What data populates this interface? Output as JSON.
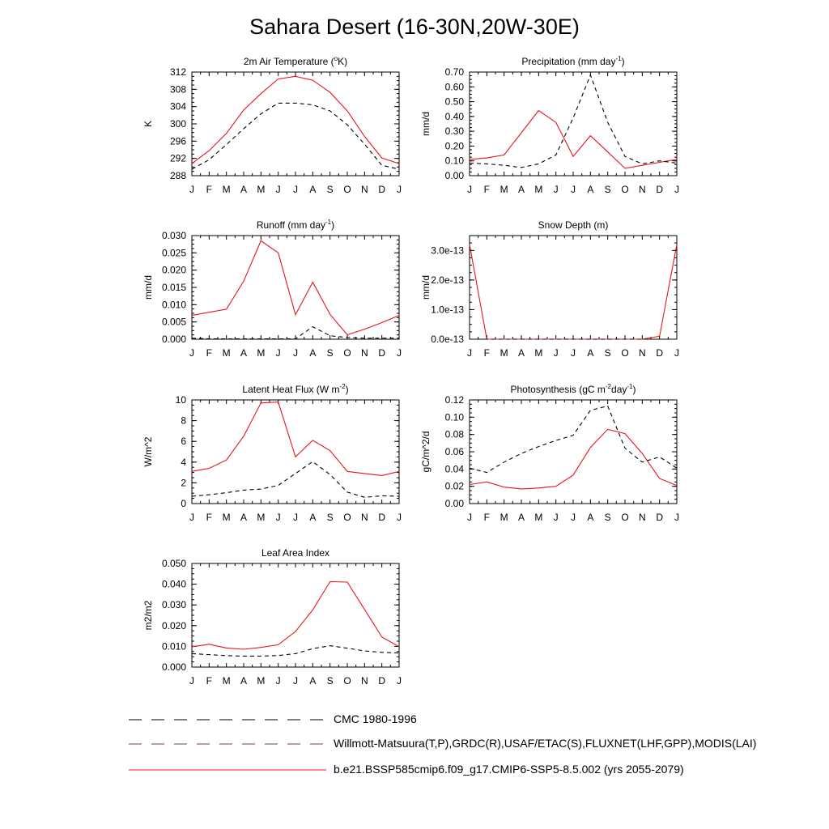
{
  "title": "Sahara Desert (16-30N,20W-30E)",
  "colors": {
    "model": "#e8141e",
    "obs": "#000000",
    "obs_alt": "#2c2cd6"
  },
  "legend": [
    {
      "label": "CMC 1980-1996",
      "style": "dashed",
      "color": "#000000"
    },
    {
      "label": "Willmott-Matsuura(T,P),GRDC(R),USAF/ETAC(S),FLUXNET(LHF,GPP),MODIS(LAI)",
      "style": "dashed",
      "color": "#2c2cd6"
    },
    {
      "label": "b.e21.BSSP585cmip6.f09_g17.CMIP6-SSP5-8.5.002 (yrs 2055-2079)",
      "style": "solid",
      "color": "#e8141e"
    }
  ],
  "chart_data": [
    {
      "type": "line",
      "title": "2m Air Temperature (",
      "title_sup": "o",
      "title_tail": "K)",
      "ylabel": "K",
      "x": [
        "J",
        "F",
        "M",
        "A",
        "M",
        "J",
        "J",
        "A",
        "S",
        "O",
        "N",
        "D",
        "J"
      ],
      "ylim": [
        288,
        312
      ],
      "yticks": [
        288,
        292,
        296,
        300,
        304,
        308,
        312
      ],
      "ytick_labels": [
        "288",
        "292",
        "296",
        "300",
        "304",
        "308",
        "312"
      ],
      "series": [
        {
          "style": "solid",
          "values": [
            290.8,
            293.8,
            297.8,
            303.2,
            307.0,
            310.4,
            311.0,
            310.1,
            307.3,
            303.0,
            297.1,
            292.1,
            290.8
          ]
        },
        {
          "style": "dashed",
          "values": [
            289.5,
            291.7,
            295.2,
            298.9,
            302.3,
            304.8,
            304.8,
            304.4,
            303.0,
            299.8,
            295.3,
            290.4,
            289.5
          ]
        }
      ]
    },
    {
      "type": "line",
      "title": "Precipitation (mm day",
      "title_sup": "-1",
      "title_tail": ")",
      "ylabel": "mm/d",
      "x": [
        "J",
        "F",
        "M",
        "A",
        "M",
        "J",
        "J",
        "A",
        "S",
        "O",
        "N",
        "D",
        "J"
      ],
      "ylim": [
        0,
        0.7
      ],
      "yticks": [
        0,
        0.1,
        0.2,
        0.3,
        0.4,
        0.5,
        0.6,
        0.7
      ],
      "ytick_labels": [
        "0.00",
        "0.10",
        "0.20",
        "0.30",
        "0.40",
        "0.50",
        "0.60",
        "0.70"
      ],
      "series": [
        {
          "style": "solid",
          "values": [
            0.11,
            0.12,
            0.14,
            0.29,
            0.44,
            0.36,
            0.13,
            0.27,
            0.16,
            0.05,
            0.07,
            0.09,
            0.11
          ]
        },
        {
          "style": "dashed",
          "values": [
            0.085,
            0.08,
            0.07,
            0.055,
            0.08,
            0.14,
            0.39,
            0.68,
            0.36,
            0.13,
            0.08,
            0.1,
            0.085
          ]
        }
      ]
    },
    {
      "type": "line",
      "title": "Runoff (mm day",
      "title_sup": "-1",
      "title_tail": ")",
      "ylabel": "mm/d",
      "x": [
        "J",
        "F",
        "M",
        "A",
        "M",
        "J",
        "J",
        "A",
        "S",
        "O",
        "N",
        "D",
        "J"
      ],
      "ylim": [
        0,
        0.03
      ],
      "yticks": [
        0,
        0.005,
        0.01,
        0.015,
        0.02,
        0.025,
        0.03
      ],
      "ytick_labels": [
        "0.000",
        "0.005",
        "0.010",
        "0.015",
        "0.020",
        "0.025",
        "0.030"
      ],
      "series": [
        {
          "style": "solid",
          "values": [
            0.0069,
            0.0078,
            0.0087,
            0.0168,
            0.0285,
            0.025,
            0.0071,
            0.0165,
            0.0072,
            0.0013,
            0.0029,
            0.0048,
            0.0069
          ]
        },
        {
          "style": "dashed",
          "values": [
            0.0003,
            0.0001,
            0.0001,
            0.0001,
            0.0001,
            0.0001,
            0.0001,
            0.0036,
            0.001,
            0.0005,
            0.0003,
            0.0003,
            0.0003
          ]
        }
      ]
    },
    {
      "type": "line",
      "title": "Snow Depth (m)",
      "title_sup": "",
      "title_tail": "",
      "ylabel": "mm/d",
      "x": [
        "J",
        "F",
        "M",
        "A",
        "M",
        "J",
        "J",
        "A",
        "S",
        "O",
        "N",
        "D",
        "J"
      ],
      "ylim": [
        0,
        3.5e-13
      ],
      "yticks": [
        0,
        1e-13,
        2e-13,
        3e-13
      ],
      "ytick_labels": [
        "0.0e-13",
        "1.0e-13",
        "2.0e-13",
        "3.0e-13"
      ],
      "series": [
        {
          "style": "solid",
          "values": [
            3.2e-13,
            0,
            0,
            0,
            0,
            0,
            0,
            0,
            0,
            0,
            0,
            1e-14,
            3.2e-13
          ]
        },
        {
          "style": "dashed",
          "values": [
            0,
            0,
            0,
            0,
            0,
            0,
            0,
            0,
            0,
            0,
            0,
            0,
            0
          ]
        }
      ]
    },
    {
      "type": "line",
      "title": "Latent Heat Flux (W m",
      "title_sup": "-2",
      "title_tail": ")",
      "ylabel": "W/m^2",
      "x": [
        "J",
        "F",
        "M",
        "A",
        "M",
        "J",
        "J",
        "A",
        "S",
        "O",
        "N",
        "D",
        "J"
      ],
      "ylim": [
        0,
        10
      ],
      "yticks": [
        0,
        2,
        4,
        6,
        8,
        10
      ],
      "ytick_labels": [
        "0",
        "2",
        "4",
        "6",
        "8",
        "10"
      ],
      "series": [
        {
          "style": "solid",
          "values": [
            3.1,
            3.4,
            4.2,
            6.5,
            9.7,
            9.8,
            4.5,
            6.1,
            5.1,
            3.1,
            2.9,
            2.7,
            3.1
          ]
        },
        {
          "style": "dashed",
          "values": [
            0.7,
            0.85,
            1.05,
            1.3,
            1.4,
            1.75,
            2.9,
            4.05,
            2.8,
            1.1,
            0.6,
            0.75,
            0.7
          ]
        }
      ]
    },
    {
      "type": "line",
      "title": "Photosynthesis (gC m",
      "title_sup": "-2",
      "title_tail": "day",
      "title_sup2": "-1",
      "title_tail2": ")",
      "ylabel": "gC/m^2/d",
      "x": [
        "J",
        "F",
        "M",
        "A",
        "M",
        "J",
        "J",
        "A",
        "S",
        "O",
        "N",
        "D",
        "J"
      ],
      "ylim": [
        0,
        0.12
      ],
      "yticks": [
        0,
        0.02,
        0.04,
        0.06,
        0.08,
        0.1,
        0.12
      ],
      "ytick_labels": [
        "0.00",
        "0.02",
        "0.04",
        "0.06",
        "0.08",
        "0.10",
        "0.12"
      ],
      "series": [
        {
          "style": "solid",
          "values": [
            0.022,
            0.025,
            0.019,
            0.017,
            0.018,
            0.02,
            0.033,
            0.065,
            0.086,
            0.081,
            0.058,
            0.029,
            0.021
          ]
        },
        {
          "style": "dashed",
          "values": [
            0.041,
            0.036,
            0.048,
            0.058,
            0.066,
            0.073,
            0.079,
            0.108,
            0.113,
            0.064,
            0.048,
            0.054,
            0.041
          ]
        }
      ]
    },
    {
      "type": "line",
      "title": "Leaf Area Index",
      "title_sup": "",
      "title_tail": "",
      "ylabel": "m2/m2",
      "x": [
        "J",
        "F",
        "M",
        "A",
        "M",
        "J",
        "J",
        "A",
        "S",
        "O",
        "N",
        "D",
        "J"
      ],
      "ylim": [
        0,
        0.05
      ],
      "yticks": [
        0,
        0.01,
        0.02,
        0.03,
        0.04,
        0.05
      ],
      "ytick_labels": [
        "0.000",
        "0.010",
        "0.020",
        "0.030",
        "0.040",
        "0.050"
      ],
      "series": [
        {
          "style": "solid",
          "values": [
            0.0098,
            0.011,
            0.0092,
            0.0086,
            0.0095,
            0.0108,
            0.0172,
            0.0276,
            0.0412,
            0.041,
            0.0278,
            0.0145,
            0.0098
          ]
        },
        {
          "style": "dashed",
          "values": [
            0.0065,
            0.006,
            0.0055,
            0.0053,
            0.0053,
            0.0056,
            0.0065,
            0.0089,
            0.0103,
            0.0091,
            0.0078,
            0.0071,
            0.0068
          ]
        }
      ]
    }
  ]
}
